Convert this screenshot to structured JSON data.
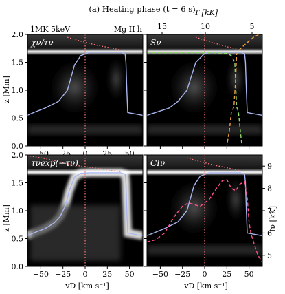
{
  "figure": {
    "title": "(a) Heating phase (t = 6 s)",
    "top_left_label": "1MK 5keV",
    "top_right_label": "Mg II h",
    "top_axis_label": "T [kK]",
    "right_axis_label": "Iν [kK]",
    "left_axis_label": "z [Mm]",
    "bottom_axis_label": "vD [km s⁻¹]"
  },
  "colors": {
    "background": "#000000",
    "tau_curve": "#a9b6f0",
    "velocity_line": "#ff7a7a",
    "temperature_curve": "#ff7a7a",
    "source_function": "#f0a03c",
    "planck_function": "#8fd86a",
    "intensity_profile": "#ff4f8c",
    "heat_band": "#ffffff"
  },
  "chart_data": [
    {
      "type": "heatmap",
      "panel_label": "χν/τν",
      "xlim": [
        -65,
        65
      ],
      "ylim": [
        0,
        2
      ],
      "xticks": [
        -50,
        -25,
        0,
        25,
        50
      ],
      "yticks": [
        "0.0",
        "0.5",
        "1.0",
        "1.5",
        "2.0"
      ],
      "tau_unity": {
        "x": [
          -65,
          -58,
          -45,
          -30,
          -20,
          -12,
          -5,
          5,
          15,
          30,
          40,
          45,
          46,
          47,
          48,
          65
        ],
        "y": [
          0.55,
          0.6,
          0.68,
          0.8,
          1.0,
          1.45,
          1.62,
          1.68,
          1.68,
          1.68,
          1.68,
          1.65,
          1.5,
          1.0,
          0.6,
          0.55
        ]
      },
      "temperature": {
        "x": [
          -20,
          -5,
          5,
          15,
          25,
          35,
          40
        ],
        "y": [
          1.95,
          1.88,
          1.84,
          1.8,
          1.77,
          1.74,
          1.72
        ]
      }
    },
    {
      "type": "heatmap",
      "panel_label": "Sν",
      "xlim": [
        -65,
        65
      ],
      "ylim": [
        0,
        2
      ],
      "top_axis_ticks": [
        "15",
        "10",
        "5"
      ],
      "tau_unity": {
        "x": [
          -65,
          -40,
          -30,
          -20,
          -10,
          0,
          10,
          20,
          30,
          40,
          45,
          46,
          47,
          48,
          65
        ],
        "y": [
          0.55,
          0.68,
          0.8,
          1.0,
          1.5,
          1.66,
          1.68,
          1.68,
          1.68,
          1.68,
          1.65,
          1.5,
          1.0,
          0.6,
          0.55
        ]
      },
      "source_function": {
        "x": [
          61,
          55,
          50,
          44,
          40,
          38,
          36,
          35,
          33,
          30,
          28,
          25
        ],
        "y": [
          2.0,
          1.95,
          1.88,
          1.8,
          1.74,
          1.7,
          1.64,
          1.2,
          0.7,
          0.6,
          0.3,
          0.0
        ]
      },
      "planck_function": {
        "x": [
          -65,
          -40,
          -10,
          10,
          25,
          30,
          34,
          36,
          38,
          40,
          42
        ],
        "y": [
          1.67,
          1.67,
          1.67,
          1.67,
          1.66,
          1.62,
          1.5,
          0.7,
          0.62,
          0.3,
          0.0
        ]
      },
      "temperature": {
        "x": [
          -10,
          0,
          10,
          20,
          30,
          38
        ],
        "y": [
          1.95,
          1.9,
          1.85,
          1.8,
          1.76,
          1.73
        ]
      }
    },
    {
      "type": "heatmap",
      "panel_label": "τνexp(−τν)",
      "xlim": [
        -65,
        65
      ],
      "ylim": [
        0,
        2
      ],
      "xticks": [
        -50,
        -25,
        0,
        25,
        50
      ],
      "yticks": [
        "0.0",
        "0.5",
        "1.0",
        "1.5",
        "2.0"
      ],
      "tau_unity": {
        "x": [
          -65,
          -58,
          -45,
          -35,
          -28,
          -22,
          -18,
          -12,
          -5,
          5,
          15,
          30,
          40,
          45,
          46,
          47,
          48,
          65
        ],
        "y": [
          0.55,
          0.6,
          0.68,
          0.78,
          0.9,
          1.1,
          1.35,
          1.6,
          1.67,
          1.68,
          1.68,
          1.68,
          1.68,
          1.65,
          1.5,
          1.0,
          0.6,
          0.55
        ]
      },
      "temperature": {
        "x": [
          -62,
          -50,
          -35,
          -20,
          -5,
          10,
          25,
          40
        ],
        "y": [
          1.98,
          1.95,
          1.9,
          1.84,
          1.8,
          1.77,
          1.73,
          1.7
        ]
      }
    },
    {
      "type": "heatmap",
      "panel_label": "CIν",
      "xlim": [
        -65,
        65
      ],
      "ylim": [
        0,
        2
      ],
      "xticks": [
        -50,
        -25,
        0,
        25,
        50
      ],
      "right_axis": {
        "label": "Iν [kK]",
        "ticks": [
          5,
          6,
          7,
          8,
          9
        ],
        "range": [
          4.5,
          9.5
        ]
      },
      "tau_unity": {
        "x": [
          -65,
          -45,
          -30,
          -20,
          -12,
          -5,
          5,
          15,
          30,
          40,
          45,
          46,
          47,
          48,
          65
        ],
        "y": [
          0.55,
          0.68,
          0.8,
          1.0,
          1.45,
          1.62,
          1.68,
          1.68,
          1.68,
          1.68,
          1.65,
          1.5,
          1.0,
          0.6,
          0.55
        ]
      },
      "intensity_kK": {
        "x": [
          -65,
          -55,
          -45,
          -35,
          -25,
          -18,
          -10,
          -5,
          0,
          5,
          10,
          15,
          20,
          25,
          30,
          35,
          40,
          45,
          48,
          50,
          52,
          55,
          60,
          65
        ],
        "y": [
          5.6,
          5.7,
          6.0,
          6.7,
          7.2,
          7.35,
          7.25,
          7.2,
          7.35,
          7.5,
          7.8,
          8.1,
          8.35,
          8.4,
          8.0,
          7.9,
          8.2,
          8.3,
          7.6,
          6.5,
          6.0,
          5.6,
          5.0,
          4.7
        ]
      },
      "temperature": {
        "x": [
          -20,
          -5,
          10,
          25,
          40
        ],
        "y": [
          1.95,
          1.88,
          1.82,
          1.77,
          1.72
        ]
      }
    }
  ]
}
